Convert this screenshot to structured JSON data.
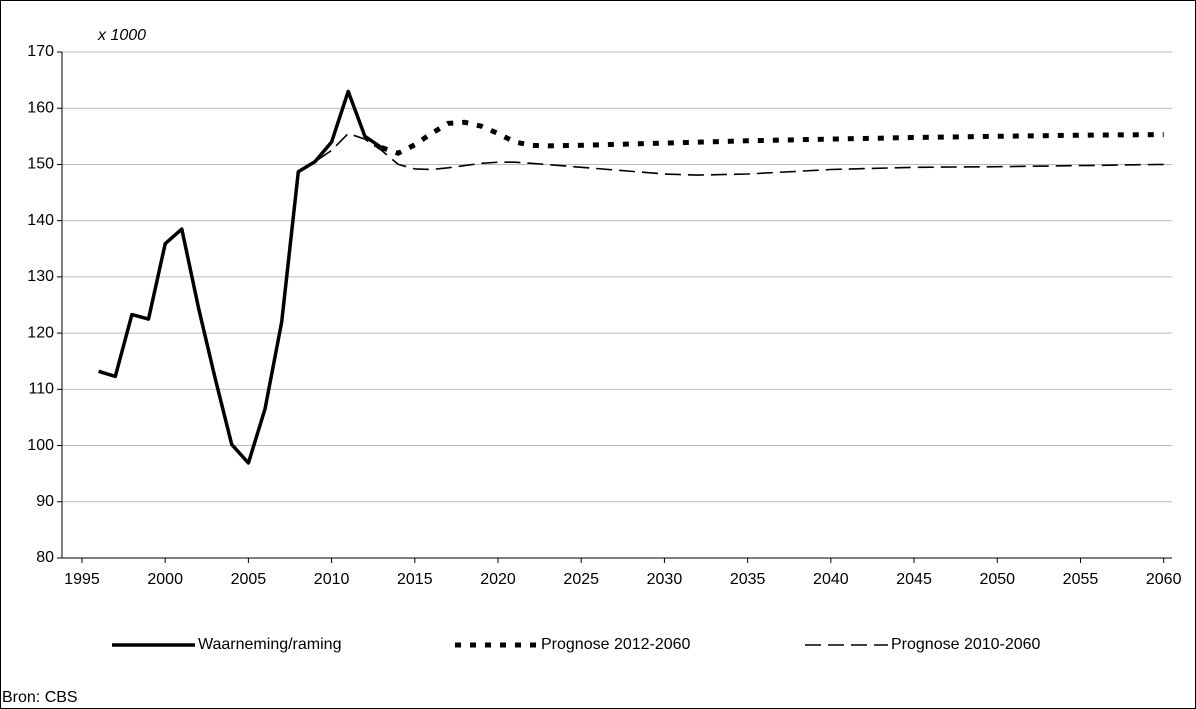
{
  "chart_data": {
    "type": "line",
    "annotation": "x 1000",
    "source": "Bron: CBS",
    "xlim": [
      1993.8,
      2060.5
    ],
    "xticks": [
      1995,
      2000,
      2005,
      2010,
      2015,
      2020,
      2025,
      2030,
      2035,
      2040,
      2045,
      2050,
      2055,
      2060
    ],
    "ylim": [
      80,
      170
    ],
    "yticks": [
      80,
      90,
      100,
      110,
      120,
      130,
      140,
      150,
      160,
      170
    ],
    "grid": true,
    "legend": "bottom",
    "series": [
      {
        "name": "Waarneming/raming",
        "color": "#000000",
        "style": "solid",
        "x": [
          1996,
          1997,
          1998,
          1999,
          2000,
          2001,
          2002,
          2003,
          2004,
          2005,
          2006,
          2007,
          2008,
          2009,
          2010,
          2011,
          2012,
          2013
        ],
        "values": [
          113.2,
          112.3,
          123.3,
          122.5,
          135.9,
          138.5,
          124.5,
          112,
          100.2,
          96.9,
          106.5,
          122,
          148.7,
          150.5,
          154,
          163,
          155,
          153
        ]
      },
      {
        "name": "Prognose 2012-2060",
        "color": "#000000",
        "style": "dotted",
        "x": [
          2013,
          2014,
          2015,
          2016,
          2017,
          2018,
          2019,
          2020,
          2021,
          2022,
          2023,
          2025,
          2030,
          2035,
          2040,
          2045,
          2050,
          2055,
          2060
        ],
        "values": [
          153,
          152,
          153.5,
          155.5,
          157.3,
          157.5,
          156.8,
          155.5,
          154,
          153.4,
          153.3,
          153.4,
          153.8,
          154.2,
          154.5,
          154.8,
          155,
          155.2,
          155.3
        ]
      },
      {
        "name": "Prognose 2010-2060",
        "color": "#000000",
        "style": "dashed",
        "x": [
          2008,
          2009,
          2010,
          2011,
          2012,
          2013,
          2014,
          2015,
          2016,
          2017,
          2018,
          2019,
          2020,
          2021,
          2022,
          2025,
          2030,
          2032,
          2035,
          2040,
          2045,
          2050,
          2055,
          2060
        ],
        "values": [
          148.7,
          150.5,
          152.5,
          155.5,
          154.5,
          152.5,
          150,
          149.2,
          149.1,
          149.4,
          149.8,
          150.2,
          150.4,
          150.4,
          150.2,
          149.5,
          148.3,
          148.1,
          148.3,
          149.1,
          149.5,
          149.6,
          149.8,
          150
        ]
      }
    ]
  }
}
